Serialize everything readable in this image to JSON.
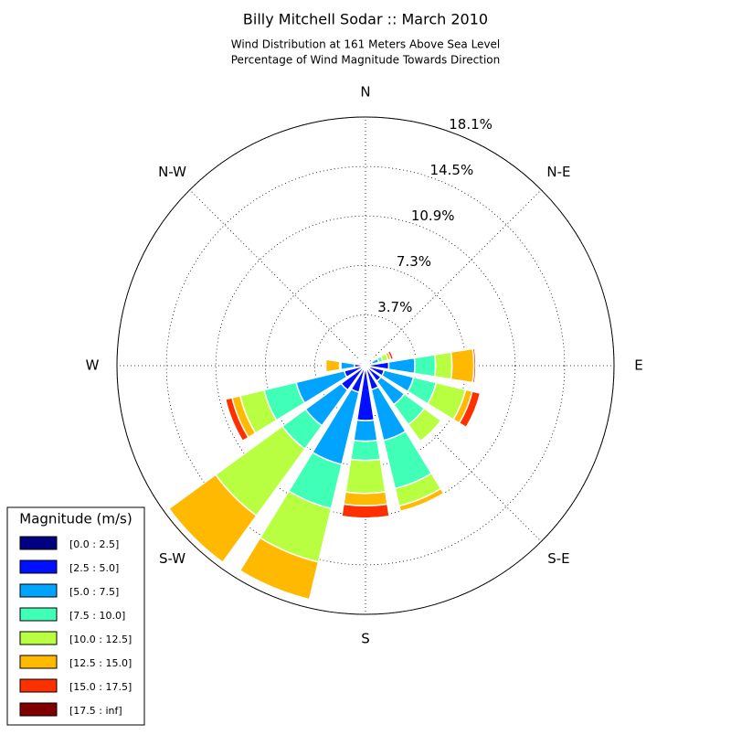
{
  "chart_data": {
    "type": "windrose",
    "title": "Billy Mitchell Sodar :: March 2010",
    "subtitle": [
      "Wind Distribution at 161 Meters Above Sea Level",
      "Percentage of Wind Magnitude Towards Direction"
    ],
    "x": [
      0,
      22.5,
      45,
      67.5,
      90,
      112.5,
      135,
      157.5,
      180,
      202.5,
      225,
      247.5,
      270,
      292.5,
      315,
      337.5
    ],
    "xticks": [
      {
        "value": 0,
        "label": "N"
      },
      {
        "value": 45,
        "label": "N-E"
      },
      {
        "value": 90,
        "label": "E"
      },
      {
        "value": 135,
        "label": "S-E"
      },
      {
        "value": 180,
        "label": "S"
      },
      {
        "value": 225,
        "label": "S-W"
      },
      {
        "value": 270,
        "label": "W"
      },
      {
        "value": 315,
        "label": "N-W"
      }
    ],
    "rlim": [
      0,
      18.1
    ],
    "rticks": [
      {
        "value": 3.7,
        "label": "3.7%"
      },
      {
        "value": 7.3,
        "label": "7.3%"
      },
      {
        "value": 10.9,
        "label": "10.9%"
      },
      {
        "value": 14.5,
        "label": "14.5%"
      },
      {
        "value": 18.1,
        "label": "18.1%"
      }
    ],
    "grid": true,
    "legend": {
      "title": "Magnitude (m/s)",
      "position": "lower left"
    },
    "series": [
      {
        "name": "[0.0 : 2.5]",
        "color": "#000080",
        "values": [
          0.1,
          0.1,
          0.1,
          0.1,
          0.2,
          0.2,
          0.1,
          0.2,
          0.3,
          0.2,
          0.2,
          0.2,
          0.1,
          0.1,
          0.1,
          0.1
        ]
      },
      {
        "name": "[2.5 : 5.0]",
        "color": "#0010ff",
        "values": [
          0.2,
          0.2,
          0.3,
          0.4,
          1.5,
          1.2,
          1.3,
          1.6,
          3.7,
          1.8,
          2.0,
          1.4,
          0.7,
          0.4,
          0.3,
          0.2
        ]
      },
      {
        "name": "[5.0 : 7.5]",
        "color": "#00a4ff",
        "values": [
          0.2,
          0.1,
          0.2,
          0.5,
          1.9,
          2.2,
          2.1,
          3.8,
          1.5,
          5.4,
          3.2,
          3.6,
          1.0,
          0.1,
          0.1,
          0.1
        ]
      },
      {
        "name": "[7.5 : 10.0]",
        "color": "#40ffb7",
        "values": [
          0.05,
          0.05,
          0.1,
          0.3,
          1.5,
          1.7,
          1.8,
          3.6,
          1.4,
          3.3,
          2.1,
          2.4,
          0.05,
          0.05,
          0.05,
          0.05
        ]
      },
      {
        "name": "[10.0 : 12.5]",
        "color": "#b7ff40",
        "values": [
          0.05,
          0.05,
          0.05,
          0.4,
          1.2,
          2.2,
          1.5,
          1.3,
          2.4,
          4.0,
          6.0,
          1.8,
          0.05,
          0.05,
          0.05,
          0.05
        ]
      },
      {
        "name": "[12.5 : 15.0]",
        "color": "#ffb900",
        "values": [
          0.02,
          0.02,
          0.02,
          0.2,
          1.6,
          0.5,
          0.1,
          0.4,
          0.9,
          2.8,
          4.2,
          0.6,
          1.0,
          0.02,
          0.02,
          0.02
        ]
      },
      {
        "name": "[15.0 : 17.5]",
        "color": "#ff3000",
        "values": [
          0.01,
          0.01,
          0.01,
          0.2,
          0.15,
          0.6,
          0.02,
          0.05,
          0.9,
          0.05,
          0.1,
          0.5,
          0.02,
          0.01,
          0.01,
          0.01
        ]
      },
      {
        "name": "[17.5 : inf]",
        "color": "#800000",
        "values": [
          0.01,
          0.01,
          0.01,
          0.05,
          0.05,
          0.02,
          0.01,
          0.01,
          0.02,
          0.01,
          0.02,
          0.02,
          0.01,
          0.01,
          0.01,
          0.01
        ]
      }
    ]
  }
}
